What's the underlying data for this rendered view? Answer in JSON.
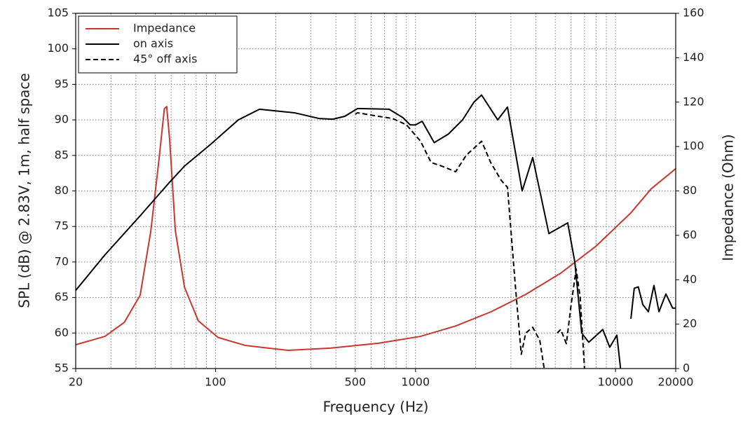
{
  "chart_data": {
    "type": "line",
    "xlabel": "Frequency (Hz)",
    "ylabel": "SPL (dB) @ 2.83V, 1m, half space",
    "y2label": "Impedance (Ohm)",
    "xscale": "log",
    "xlim": [
      20,
      20000
    ],
    "xticks": [
      20,
      100,
      500,
      1000,
      10000,
      20000
    ],
    "xgrid": [
      20,
      30,
      40,
      50,
      60,
      70,
      80,
      90,
      100,
      200,
      300,
      400,
      500,
      600,
      700,
      800,
      900,
      1000,
      2000,
      3000,
      4000,
      5000,
      6000,
      7000,
      8000,
      9000,
      10000,
      20000
    ],
    "ylim": [
      55,
      105
    ],
    "yticks": [
      55,
      60,
      65,
      70,
      75,
      80,
      85,
      90,
      95,
      100,
      105
    ],
    "y2lim": [
      0,
      160
    ],
    "y2ticks": [
      0,
      20,
      40,
      60,
      80,
      100,
      120,
      140,
      160
    ],
    "grid": true,
    "legend": "upper left",
    "series": [
      {
        "name": "Impedance",
        "color": "#c8372d",
        "style": "solid",
        "axis": "y2",
        "x": [
          20,
          28,
          35,
          42,
          47.5,
          52,
          55.5,
          57,
          59,
          63,
          70,
          82,
          103,
          141,
          230,
          375,
          653,
          1060,
          1590,
          2390,
          3560,
          5330,
          7960,
          11900,
          15100,
          20000
        ],
        "values": [
          10.7,
          14.5,
          20.8,
          33,
          62,
          93,
          117,
          118,
          103,
          62,
          36.6,
          21.5,
          14,
          10.4,
          8.2,
          9.2,
          11.4,
          14.5,
          19.2,
          25.6,
          33.4,
          43,
          55,
          70,
          81,
          90
        ]
      },
      {
        "name": "on axis",
        "color": "#000000",
        "style": "solid",
        "x": [
          20,
          28,
          42,
          58,
          70,
          94,
          130,
          166,
          248,
          329,
          386,
          443,
          513,
          738,
          867,
          940,
          1000,
          1080,
          1240,
          1460,
          1720,
          1960,
          2140,
          2576,
          2884,
          3415,
          3855,
          4645,
          5770,
          6260,
          6780,
          7350,
          8640,
          9360,
          10160,
          10600,
          11000,
          11500,
          11940,
          12410,
          13000,
          13700,
          14600,
          15570,
          16500,
          17870,
          19320,
          20000
        ],
        "values": [
          66,
          71,
          76.5,
          81,
          83.5,
          86.5,
          90,
          91.5,
          91,
          90.2,
          90.1,
          90.5,
          91.6,
          91.5,
          90.3,
          89.3,
          89.3,
          89.8,
          86.8,
          88,
          90,
          92.5,
          93.5,
          90,
          91.8,
          80,
          84.7,
          74,
          75.5,
          70,
          60,
          58.7,
          60.5,
          58,
          59.7,
          55,
          null,
          null,
          62,
          66.3,
          66.5,
          64,
          63,
          66.7,
          63,
          65.5,
          63.5,
          63.5
        ]
      },
      {
        "name": "45° off axis",
        "color": "#000000",
        "style": "dashed",
        "x": [
          500,
          513,
          653,
          768,
          902,
          1060,
          1197,
          1352,
          1588,
          1791,
          2140,
          2377,
          2681,
          2884,
          3150,
          3380,
          3558,
          3855,
          4180,
          4400,
          4905,
          5115,
          5320,
          5680,
          6000,
          6360,
          6660,
          7000
        ],
        "values": [
          90.8,
          91,
          90.5,
          90.2,
          89.3,
          87,
          84,
          83.5,
          82.7,
          85,
          87,
          84,
          81.5,
          80.5,
          67,
          57,
          60,
          60.8,
          59,
          55,
          null,
          60,
          60.5,
          58.5,
          64,
          69,
          65,
          55
        ]
      }
    ]
  }
}
